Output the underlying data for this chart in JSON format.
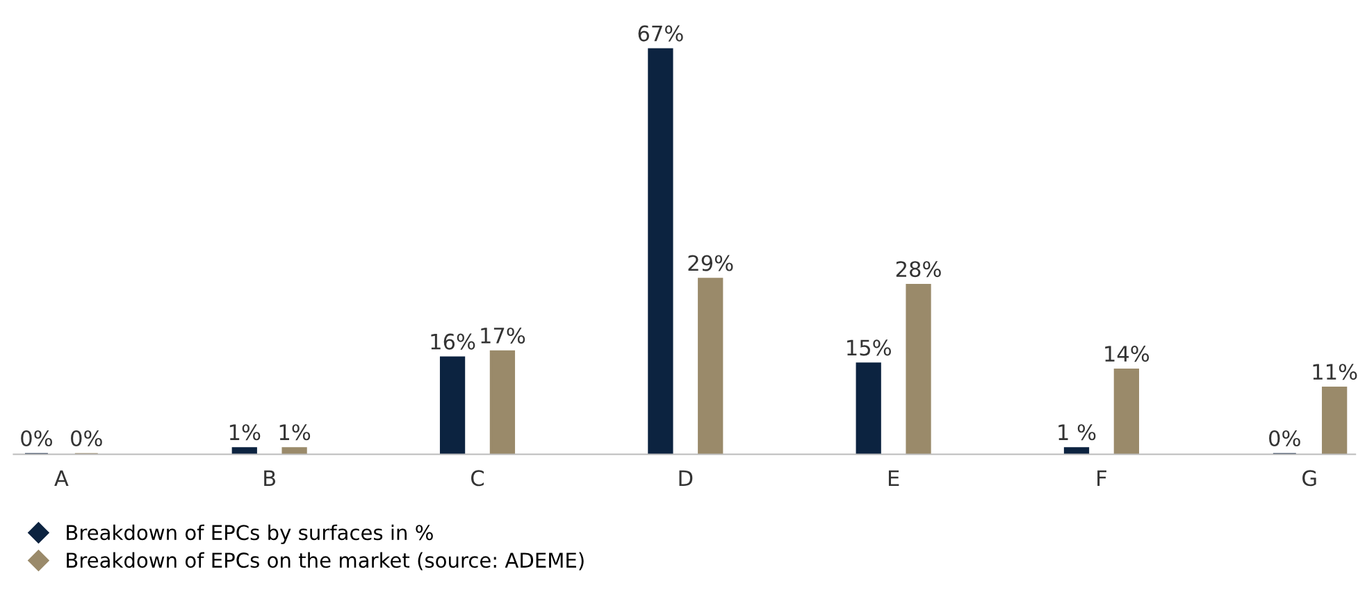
{
  "chart_data": {
    "type": "bar",
    "categories": [
      "A",
      "B",
      "C",
      "D",
      "E",
      "F",
      "G"
    ],
    "series": [
      {
        "name": "Breakdown of EPCs by surfaces in %",
        "color": "#0c2340",
        "values": [
          0,
          1,
          16,
          67,
          15,
          1,
          0
        ],
        "value_labels": [
          "0%",
          "1%",
          "16%",
          "67%",
          "15%",
          "1 %",
          "0%"
        ]
      },
      {
        "name": "Breakdown of EPCs on the market (source: ADEME)",
        "color": "#9a8a6a",
        "values": [
          0,
          1,
          17,
          29,
          28,
          14,
          11
        ],
        "value_labels": [
          "0%",
          "1%",
          "17%",
          "29%",
          "28%",
          "14%",
          "11%"
        ]
      }
    ],
    "tick_labels": "x",
    "grid": false,
    "legend": "bottom left",
    "marker": "diamond"
  }
}
